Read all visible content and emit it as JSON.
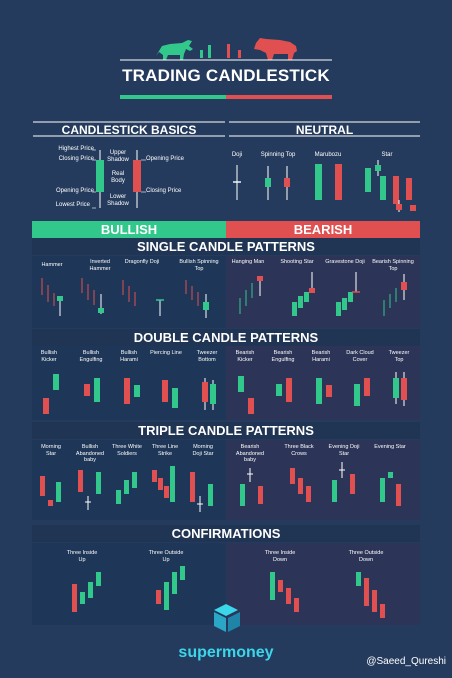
{
  "title": "TRADING CANDLESTICK",
  "colors": {
    "bullish": "#32c88c",
    "bearish": "#e05050",
    "background": "#253b5d",
    "accent": "#3bd6ea"
  },
  "basics": {
    "heading": "CANDLESTICK BASICS",
    "labels": {
      "highest": "Highest Price",
      "closing_left": "Closing Price",
      "opening_left": "Opening Price",
      "lowest": "Lowest Price",
      "upper_shadow": "Upper Shadow",
      "real_body": "Real Body",
      "lower_shadow": "Lower Shadow",
      "opening_right": "Opening Price",
      "closing_right": "Closing Price"
    }
  },
  "neutral": {
    "heading": "NEUTRAL",
    "items": [
      "Doji",
      "Spinning Top",
      "Marubozu",
      "Star"
    ]
  },
  "bullish_label": "BULLISH",
  "bearish_label": "BEARISH",
  "single": {
    "heading": "SINGLE CANDLE PATTERNS",
    "bull": [
      "Hammer",
      "Inverted Hammer",
      "Dragonfly Doji",
      "Bullish Spinning Top"
    ],
    "bear": [
      "Hanging Man",
      "Shooting Star",
      "Gravestone Doji",
      "Bearish Spinning Top"
    ]
  },
  "double": {
    "heading": "DOUBLE CANDLE PATTERNS",
    "bull": [
      "Bullish Kicker",
      "Bullish Engulfing",
      "Bullish Harami",
      "Piercing Line",
      "Tweezer Bottom"
    ],
    "bear": [
      "Bearish Kicker",
      "Bearish Engulfing",
      "Bearish Harami",
      "Dark Cloud Cover",
      "Tweezer Top"
    ]
  },
  "triple": {
    "heading": "TRIPLE CANDLE PATTERNS",
    "bull": [
      "Morning Star",
      "Bullish Abandoned baby",
      "Three White Soldiers",
      "Three Line Strike",
      "Morning Doji Star"
    ],
    "bear": [
      "Bearish Abandoned baby",
      "Three Black Crows",
      "Evening Doji Star",
      "Evening Star"
    ]
  },
  "confirm": {
    "heading": "CONFIRMATIONS",
    "bull": [
      "Three Inside Up",
      "Three Outside Up"
    ],
    "bear": [
      "Three Inside Down",
      "Three Outside Down"
    ]
  },
  "brand": "supermoney",
  "handle": "@Saeed_Qureshi"
}
